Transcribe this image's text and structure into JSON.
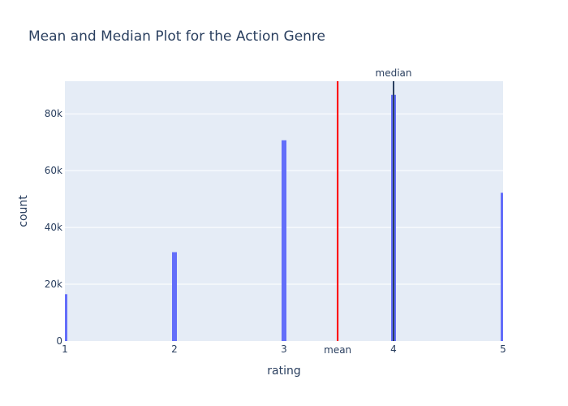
{
  "chart_data": {
    "type": "bar",
    "title": "Mean and Median Plot for the Action Genre",
    "xlabel": "rating",
    "ylabel": "count",
    "x": [
      1,
      2,
      3,
      4,
      5
    ],
    "values": [
      16500,
      31300,
      70700,
      86700,
      52200
    ],
    "xlim": [
      1,
      5
    ],
    "ylim": [
      0,
      91500
    ],
    "xticks": [
      1,
      2,
      3,
      4,
      5
    ],
    "xtick_labels": [
      "1",
      "2",
      "3",
      "4",
      "5"
    ],
    "yticks": [
      0,
      20000,
      40000,
      60000,
      80000
    ],
    "ytick_labels": [
      "0",
      "20k",
      "40k",
      "60k",
      "80k"
    ],
    "grid": true,
    "reference_lines": [
      {
        "label": "mean",
        "x": 3.49,
        "color": "#ff0000",
        "label_position": "bottom"
      },
      {
        "label": "median",
        "x": 4.0,
        "color": "#2a3f5f",
        "label_position": "top"
      }
    ],
    "colors": {
      "bar": "#636efa",
      "plot_bg": "#e5ecf6",
      "grid": "#ffffff",
      "text": "#2a3f5f"
    }
  }
}
